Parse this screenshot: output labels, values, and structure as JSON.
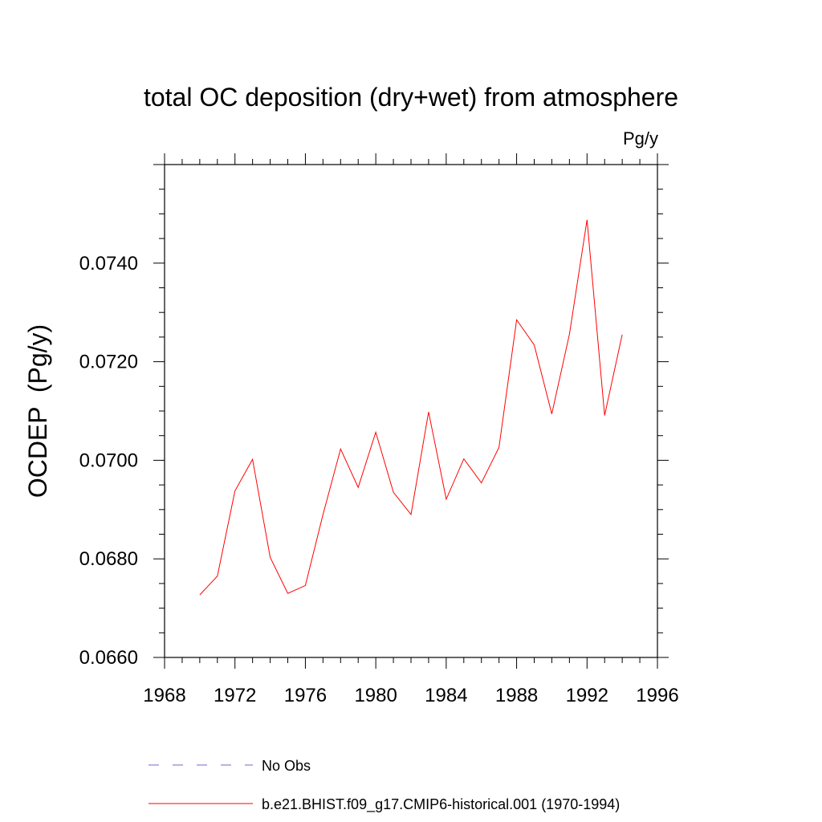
{
  "chart_data": {
    "type": "line",
    "title": "total OC deposition (dry+wet) from atmosphere",
    "units_label": "Pg/y",
    "xlabel": "",
    "ylabel": "OCDEP  (Pg/y)",
    "xlim": [
      1968,
      1996
    ],
    "ylim": [
      0.066,
      0.076
    ],
    "x_ticks": [
      "1968",
      "1972",
      "1976",
      "1980",
      "1984",
      "1988",
      "1992",
      "1996"
    ],
    "y_ticks": [
      "0.0660",
      "0.0680",
      "0.0700",
      "0.0720",
      "0.0740"
    ],
    "series": [
      {
        "name": "b.e21.BHIST.f09_g17.CMIP6-historical.001 (1970-1994)",
        "color": "#ff0000",
        "style": "solid",
        "x": [
          1970,
          1971,
          1972,
          1973,
          1974,
          1975,
          1976,
          1977,
          1978,
          1979,
          1980,
          1981,
          1982,
          1983,
          1984,
          1985,
          1986,
          1987,
          1988,
          1989,
          1990,
          1991,
          1992,
          1993,
          1994
        ],
        "values": [
          0.06727,
          0.06765,
          0.06938,
          0.07002,
          0.06803,
          0.0673,
          0.06746,
          0.0689,
          0.07023,
          0.06945,
          0.07057,
          0.06935,
          0.0689,
          0.07098,
          0.06921,
          0.07003,
          0.06954,
          0.07026,
          0.07285,
          0.07234,
          0.07094,
          0.07256,
          0.07488,
          0.07091,
          0.07255
        ]
      }
    ],
    "legend": [
      {
        "label": "No Obs",
        "color": "#6b6bc8",
        "style": "dashed"
      },
      {
        "label": "b.e21.BHIST.f09_g17.CMIP6-historical.001 (1970-1994)",
        "color": "#ff0000",
        "style": "solid"
      }
    ]
  }
}
